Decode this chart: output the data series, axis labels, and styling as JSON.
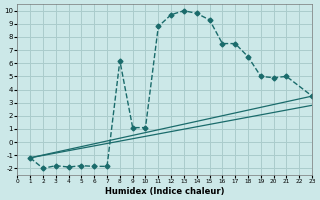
{
  "background_color": "#cce8e8",
  "grid_color": "#aacccc",
  "line_color": "#1a6b6b",
  "xlabel": "Humidex (Indice chaleur)",
  "xlim": [
    0,
    23
  ],
  "ylim": [
    -2.5,
    10.5
  ],
  "xticks": [
    0,
    1,
    2,
    3,
    4,
    5,
    6,
    7,
    8,
    9,
    10,
    11,
    12,
    13,
    14,
    15,
    16,
    17,
    18,
    19,
    20,
    21,
    22,
    23
  ],
  "yticks": [
    -2,
    -1,
    0,
    1,
    2,
    3,
    4,
    5,
    6,
    7,
    8,
    9,
    10
  ],
  "curve1_x": [
    1,
    2,
    3,
    4,
    5,
    6,
    7,
    8,
    9,
    10,
    11,
    12,
    13,
    14,
    15,
    16,
    17,
    18,
    19,
    20,
    21,
    23
  ],
  "curve1_y": [
    -1.2,
    -2.0,
    -1.8,
    -1.9,
    -1.8,
    -1.85,
    -1.85,
    6.2,
    1.1,
    1.1,
    8.8,
    9.7,
    10.0,
    9.8,
    9.3,
    7.5,
    7.5,
    6.5,
    5.0,
    4.9,
    5.0,
    3.5
  ],
  "line1_x": [
    1,
    23
  ],
  "line1_y": [
    -1.2,
    3.5
  ],
  "line2_x": [
    1,
    23
  ],
  "line2_y": [
    -1.2,
    2.8
  ]
}
